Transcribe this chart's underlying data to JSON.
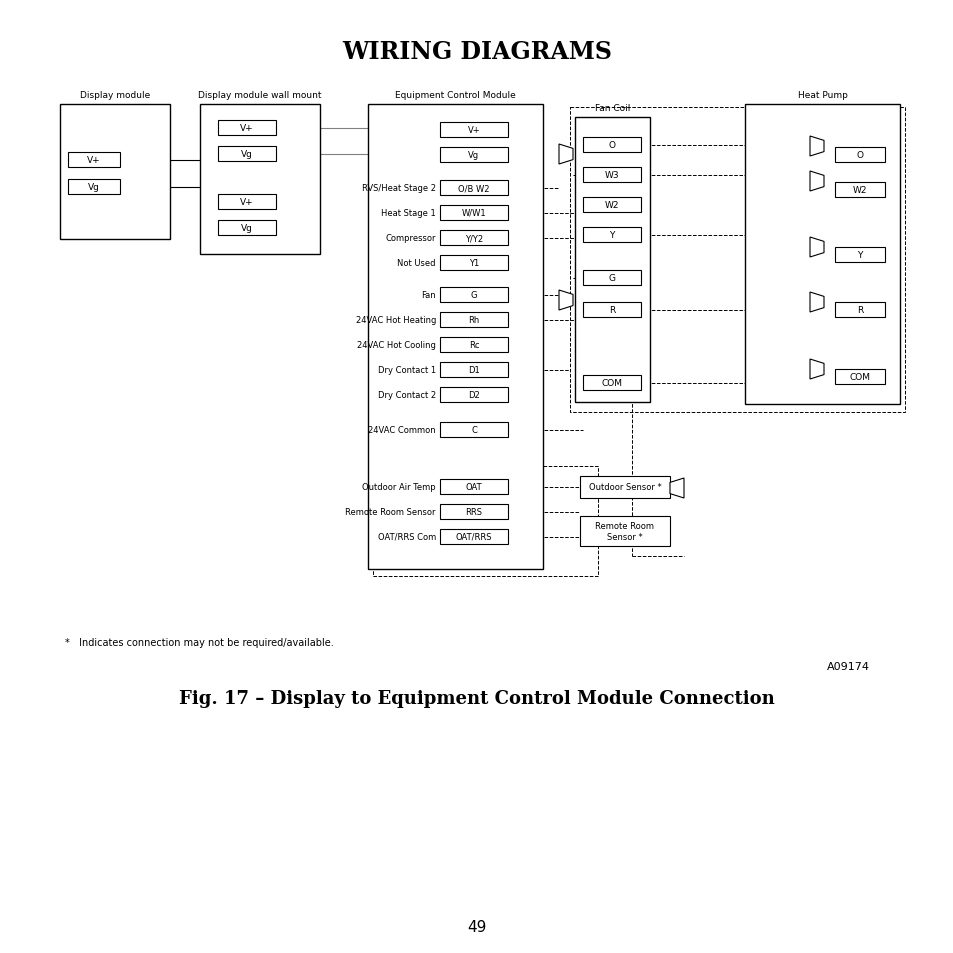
{
  "title": "WIRING DIAGRAMS",
  "subtitle": "Fig. 17 – Display to Equipment Control Module Connection",
  "footnote": "*   Indicates connection may not be required/available.",
  "model_number": "A09174",
  "page_number": "49",
  "bg_color": "#ffffff"
}
